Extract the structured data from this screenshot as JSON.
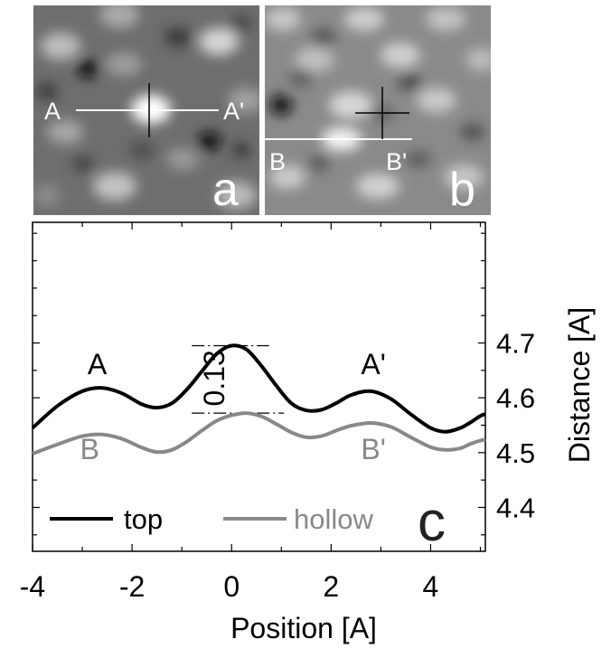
{
  "panels": [
    {
      "letter": "a",
      "line_start_label": "A",
      "line_end_label": "A'"
    },
    {
      "letter": "b",
      "line_start_label": "B",
      "line_end_label": "B'"
    }
  ],
  "chart_data": {
    "type": "line",
    "panel_letter": "c",
    "xlabel": "Position [A]",
    "ylabel": "Distance [A]",
    "xlim": [
      -4,
      5.1
    ],
    "ylim": [
      4.32,
      4.92
    ],
    "xticks": [
      -4,
      -2,
      0,
      2,
      4
    ],
    "yticks": [
      4.4,
      4.5,
      4.6,
      4.7
    ],
    "ytick_side": "right",
    "grid": false,
    "legend_placement": "bottom-left",
    "series": [
      {
        "name": "top",
        "color": "#000000",
        "x": [
          -4.0,
          -3.5,
          -3.0,
          -2.6,
          -2.2,
          -1.8,
          -1.5,
          -1.2,
          -0.9,
          -0.6,
          -0.3,
          0.0,
          0.3,
          0.6,
          0.9,
          1.2,
          1.5,
          1.8,
          2.1,
          2.4,
          2.8,
          3.2,
          3.6,
          4.0,
          4.3,
          4.6,
          4.8,
          5.0,
          5.1
        ],
        "y": [
          4.545,
          4.585,
          4.612,
          4.618,
          4.608,
          4.588,
          4.582,
          4.59,
          4.615,
          4.648,
          4.68,
          4.695,
          4.688,
          4.658,
          4.622,
          4.59,
          4.577,
          4.578,
          4.59,
          4.605,
          4.612,
          4.598,
          4.57,
          4.545,
          4.538,
          4.545,
          4.555,
          4.567,
          4.57
        ]
      },
      {
        "name": "hollow",
        "color": "#888888",
        "x": [
          -4.0,
          -3.5,
          -3.0,
          -2.6,
          -2.2,
          -1.8,
          -1.5,
          -1.2,
          -0.9,
          -0.6,
          -0.3,
          0.0,
          0.3,
          0.6,
          0.9,
          1.2,
          1.5,
          1.8,
          2.1,
          2.4,
          2.8,
          3.2,
          3.6,
          4.0,
          4.3,
          4.6,
          4.8,
          5.0,
          5.1
        ],
        "y": [
          4.498,
          4.515,
          4.53,
          4.533,
          4.525,
          4.509,
          4.501,
          4.505,
          4.52,
          4.54,
          4.558,
          4.568,
          4.572,
          4.566,
          4.552,
          4.537,
          4.528,
          4.53,
          4.54,
          4.549,
          4.554,
          4.547,
          4.528,
          4.51,
          4.505,
          4.508,
          4.516,
          4.522,
          4.524
        ]
      }
    ],
    "annotations": [
      {
        "text": "A",
        "x": -2.7,
        "y": 4.643,
        "color": "#000000"
      },
      {
        "text": "A'",
        "x": 2.85,
        "y": 4.643,
        "color": "#000000"
      },
      {
        "text": "B",
        "x": -2.85,
        "y": 4.488,
        "color": "#888888"
      },
      {
        "text": "B'",
        "x": 2.85,
        "y": 4.488,
        "color": "#888888"
      },
      {
        "text": "0.13",
        "x": -0.35,
        "y": 4.636,
        "color": "#000000",
        "rotation": -90
      }
    ],
    "reference_lines": [
      {
        "y": 4.695,
        "x_from": -0.8,
        "x_to": 0.75,
        "style": "dashdot"
      },
      {
        "y": 4.572,
        "x_from": -0.8,
        "x_to": 1.05,
        "style": "dashdot"
      }
    ]
  }
}
